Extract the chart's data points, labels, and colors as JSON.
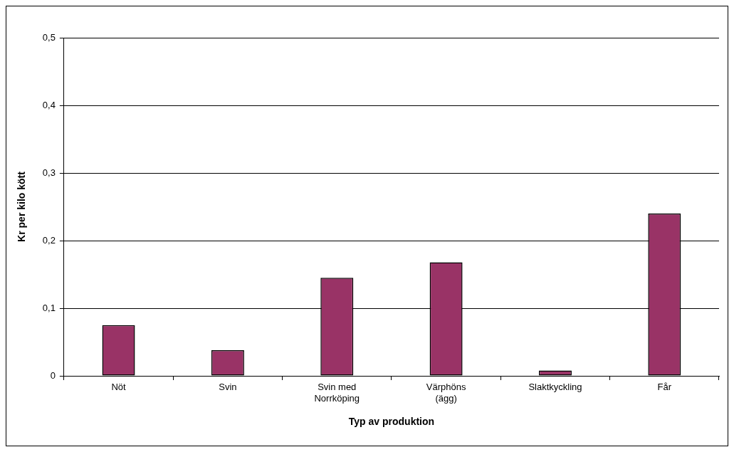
{
  "chart_data": {
    "type": "bar",
    "xlabel": "Typ av produktion",
    "ylabel": "Kr per kilo kött",
    "categories": [
      "Nöt",
      "Svin",
      "Svin med Norrköping",
      "Värphöns (ägg)",
      "Slaktkyckling",
      "Får"
    ],
    "values": [
      0.075,
      0.038,
      0.145,
      0.168,
      0.008,
      0.24
    ],
    "color": "#993366",
    "ylim": [
      0,
      0.5
    ],
    "yticks": [
      {
        "value": 0,
        "label": "0"
      },
      {
        "value": 0.1,
        "label": "0,1"
      },
      {
        "value": 0.2,
        "label": "0,2"
      },
      {
        "value": 0.3,
        "label": "0,3"
      },
      {
        "value": 0.4,
        "label": "0,4"
      },
      {
        "value": 0.5,
        "label": "0,5"
      }
    ],
    "grid": "y",
    "legend": false
  }
}
